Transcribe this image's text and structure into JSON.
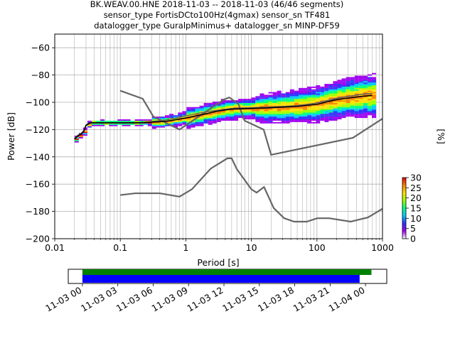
{
  "title_lines": [
    "BK.WEAV.00.HNE   2018-11-03 -- 2018-11-03  (46/46 segments)",
    "sensor_type FortisDCto100Hz(4gmax) sensor_sn TF481",
    "datalogger_type GuralpMinimus+ datalogger_sn MINP-DF59"
  ],
  "chart_data": {
    "type": "heatmap",
    "xlabel": "Period [s]",
    "ylabel": "Power [dB]",
    "xscale": "log",
    "xlim": [
      0.01,
      1000
    ],
    "ylim": [
      -200,
      -50
    ],
    "xticks": [
      {
        "value": 0.01,
        "label": "0.01"
      },
      {
        "value": 0.1,
        "label": "0.1"
      },
      {
        "value": 1,
        "label": "1"
      },
      {
        "value": 10,
        "label": "10"
      },
      {
        "value": 100,
        "label": "100"
      },
      {
        "value": 1000,
        "label": "1000"
      }
    ],
    "yticks": [
      -60,
      -80,
      -100,
      -120,
      -140,
      -160,
      -180,
      -200
    ],
    "grid": true,
    "colorbar": {
      "label": "[%]",
      "min": 0,
      "max": 30,
      "ticks": [
        0,
        5,
        10,
        15,
        20,
        25,
        30
      ],
      "colors": [
        "#ffffff",
        "#a000f0",
        "#3030ff",
        "#00c8ff",
        "#00ff80",
        "#a0ff00",
        "#ffe000",
        "#ff8000",
        "#e00000"
      ]
    },
    "noise_models": [
      {
        "period": [
          0.1,
          0.22,
          0.32,
          0.8,
          3.8,
          4.6,
          6.3,
          7.9,
          15.4,
          20,
          354.8,
          1000
        ],
        "power": [
          -91.5,
          -97.4,
          -110.5,
          -120,
          -98,
          -96.5,
          -101,
          -113.5,
          -120,
          -138.5,
          -126,
          -112
        ]
      },
      {
        "period": [
          0.1,
          0.17,
          0.4,
          0.8,
          1.24,
          2.4,
          4.3,
          5,
          6,
          10,
          12,
          15.6,
          21.9,
          31.6,
          45,
          70,
          101,
          154,
          328,
          600,
          1000
        ],
        "power": [
          -168,
          -166.7,
          -166.7,
          -169.2,
          -163.7,
          -148.6,
          -141.1,
          -141.1,
          -149,
          -163.8,
          -166.2,
          -162.1,
          -177.5,
          -185,
          -187.5,
          -187.5,
          -185,
          -185,
          -187.5,
          -184.4,
          -178
        ]
      }
    ],
    "mean_curve": {
      "period": [
        0.02,
        0.022,
        0.025,
        0.028,
        0.03,
        0.035,
        0.05,
        0.1,
        0.2,
        0.5,
        1,
        2,
        3,
        5,
        10,
        20,
        50,
        100,
        200,
        500,
        700
      ],
      "power": [
        -127,
        -125,
        -123.5,
        -121,
        -117,
        -115,
        -115,
        -115,
        -115,
        -114,
        -111.5,
        -108.5,
        -106.5,
        -105,
        -104.5,
        -104,
        -103,
        -101.5,
        -98,
        -95.5,
        -95
      ]
    },
    "mode_curve": {
      "period": [
        0.02,
        0.022,
        0.025,
        0.028,
        0.03,
        0.035,
        0.05,
        0.1,
        0.2,
        0.5,
        1,
        2,
        3,
        5,
        10,
        20,
        50,
        100,
        200,
        500,
        700
      ],
      "power": [
        -126.5,
        -124.5,
        -123,
        -120.5,
        -116.5,
        -115,
        -115,
        -115,
        -115,
        -113,
        -110,
        -107,
        -106,
        -104.5,
        -104,
        -103.5,
        -102.5,
        -100.5,
        -97,
        -94,
        -93.5
      ]
    }
  },
  "timeline": {
    "tick_labels": [
      "11-03 00",
      "11-03 03",
      "11-03 06",
      "11-03 09",
      "11-03 12",
      "11-03 15",
      "11-03 18",
      "11-03 21",
      "11-04 00"
    ],
    "green_bar": {
      "start_hours": 0,
      "end_hours": 24.5
    },
    "blue_bar": {
      "start_hours": 0,
      "end_hours": 23.5
    },
    "range_hours": [
      -1.2,
      25.8
    ]
  }
}
